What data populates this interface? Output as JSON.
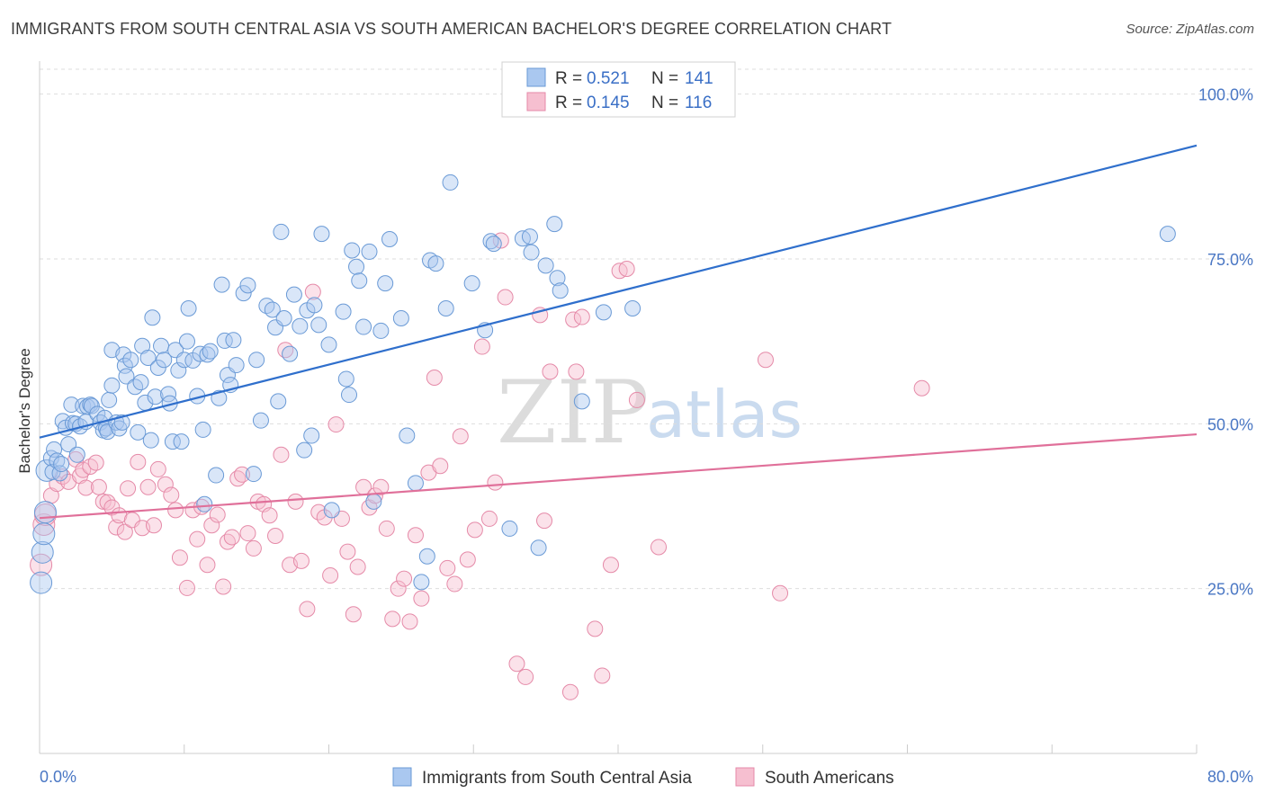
{
  "title": "IMMIGRANTS FROM SOUTH CENTRAL ASIA VS SOUTH AMERICAN BACHELOR'S DEGREE CORRELATION CHART",
  "source": "Source: ZipAtlas.com",
  "watermark": {
    "zip": "ZIP",
    "atlas": "atlas"
  },
  "colors": {
    "blue_fill": "#aac8f0",
    "blue_stroke": "#6a9ad6",
    "blue_line": "#2f6fcc",
    "pink_fill": "#f6bfd0",
    "pink_stroke": "#e58aa8",
    "pink_line": "#e0709a",
    "tick_label": "#4a77c4",
    "grid": "#dddddd"
  },
  "legend": {
    "rows": [
      {
        "r_label": "R = ",
        "r_value": "0.521",
        "n_label": "N = ",
        "n_value": "141"
      },
      {
        "r_label": "R = ",
        "r_value": "0.145",
        "n_label": "N = ",
        "n_value": "116"
      }
    ]
  },
  "chart_data": {
    "type": "scatter",
    "title": "IMMIGRANTS FROM SOUTH CENTRAL ASIA VS SOUTH AMERICAN BACHELOR'S DEGREE CORRELATION CHART",
    "xlabel": "",
    "ylabel": "Bachelor's Degree",
    "xlim": [
      0,
      80
    ],
    "ylim": [
      0,
      105
    ],
    "x_tick_labels": [
      "0.0%",
      "80.0%"
    ],
    "y_ticks": [
      25,
      50,
      75,
      100
    ],
    "y_tick_labels": [
      "25.0%",
      "50.0%",
      "75.0%",
      "100.0%"
    ],
    "grid": "horizontal dashed",
    "legend_position": "top-center",
    "series": [
      {
        "name": "Immigrants from South Central Asia",
        "color": "blue",
        "trend": {
          "x": [
            0,
            80
          ],
          "y": [
            47.9,
            92.2
          ]
        },
        "points": [
          [
            0.1,
            25.9
          ],
          [
            0.2,
            30.5
          ],
          [
            0.3,
            33.3
          ],
          [
            0.4,
            36.6
          ],
          [
            0.5,
            42.9
          ],
          [
            0.8,
            44.8
          ],
          [
            0.9,
            42.7
          ],
          [
            1.0,
            46.1
          ],
          [
            1.2,
            44.4
          ],
          [
            1.4,
            42.5
          ],
          [
            1.5,
            43.9
          ],
          [
            1.6,
            50.4
          ],
          [
            1.8,
            49.4
          ],
          [
            2.0,
            46.9
          ],
          [
            2.2,
            52.9
          ],
          [
            2.3,
            50.1
          ],
          [
            2.5,
            50.0
          ],
          [
            2.6,
            45.3
          ],
          [
            2.8,
            49.6
          ],
          [
            3.0,
            52.7
          ],
          [
            3.2,
            50.3
          ],
          [
            3.3,
            52.6
          ],
          [
            3.5,
            52.9
          ],
          [
            3.6,
            52.7
          ],
          [
            4.0,
            51.5
          ],
          [
            4.2,
            50.2
          ],
          [
            4.4,
            49.0
          ],
          [
            4.5,
            50.9
          ],
          [
            4.6,
            49.3
          ],
          [
            4.7,
            48.8
          ],
          [
            4.8,
            53.6
          ],
          [
            5.0,
            55.8
          ],
          [
            5.0,
            61.2
          ],
          [
            5.3,
            50.2
          ],
          [
            5.5,
            49.3
          ],
          [
            5.7,
            50.2
          ],
          [
            5.8,
            60.5
          ],
          [
            5.9,
            58.8
          ],
          [
            6.0,
            57.2
          ],
          [
            6.3,
            59.7
          ],
          [
            6.6,
            55.6
          ],
          [
            6.8,
            48.7
          ],
          [
            7.0,
            56.3
          ],
          [
            7.1,
            61.8
          ],
          [
            7.3,
            53.2
          ],
          [
            7.5,
            60.0
          ],
          [
            7.7,
            47.5
          ],
          [
            7.8,
            66.1
          ],
          [
            8.0,
            54.1
          ],
          [
            8.2,
            58.5
          ],
          [
            8.4,
            61.8
          ],
          [
            8.6,
            59.7
          ],
          [
            8.9,
            54.5
          ],
          [
            9.0,
            53.1
          ],
          [
            9.2,
            47.3
          ],
          [
            9.4,
            61.2
          ],
          [
            9.6,
            58.1
          ],
          [
            9.8,
            47.3
          ],
          [
            10.0,
            59.7
          ],
          [
            10.2,
            62.5
          ],
          [
            10.3,
            67.5
          ],
          [
            10.6,
            59.6
          ],
          [
            10.9,
            54.2
          ],
          [
            11.1,
            60.6
          ],
          [
            11.3,
            49.1
          ],
          [
            11.4,
            37.8
          ],
          [
            11.6,
            60.5
          ],
          [
            11.8,
            61.0
          ],
          [
            12.2,
            42.2
          ],
          [
            12.4,
            53.9
          ],
          [
            12.6,
            71.1
          ],
          [
            12.8,
            62.6
          ],
          [
            13.0,
            57.4
          ],
          [
            13.2,
            55.9
          ],
          [
            13.4,
            62.7
          ],
          [
            13.6,
            58.9
          ],
          [
            14.1,
            69.8
          ],
          [
            14.4,
            71.0
          ],
          [
            14.8,
            42.4
          ],
          [
            15.0,
            59.7
          ],
          [
            15.3,
            50.5
          ],
          [
            15.7,
            67.9
          ],
          [
            16.1,
            67.3
          ],
          [
            16.3,
            64.6
          ],
          [
            16.5,
            53.4
          ],
          [
            16.7,
            79.1
          ],
          [
            16.9,
            66.0
          ],
          [
            17.3,
            60.6
          ],
          [
            17.6,
            69.6
          ],
          [
            18.0,
            64.8
          ],
          [
            18.3,
            46.0
          ],
          [
            18.5,
            67.2
          ],
          [
            18.8,
            48.2
          ],
          [
            19.0,
            68.0
          ],
          [
            19.3,
            65.0
          ],
          [
            19.5,
            78.8
          ],
          [
            20.0,
            62.0
          ],
          [
            20.2,
            36.9
          ],
          [
            21.0,
            67.0
          ],
          [
            21.2,
            56.8
          ],
          [
            21.4,
            54.4
          ],
          [
            21.6,
            76.3
          ],
          [
            21.9,
            73.8
          ],
          [
            22.1,
            71.7
          ],
          [
            22.4,
            64.7
          ],
          [
            22.8,
            76.1
          ],
          [
            23.1,
            38.2
          ],
          [
            23.6,
            64.1
          ],
          [
            23.9,
            71.3
          ],
          [
            24.2,
            78.0
          ],
          [
            25.0,
            66.0
          ],
          [
            25.4,
            48.2
          ],
          [
            26.0,
            41.0
          ],
          [
            26.4,
            26.0
          ],
          [
            26.8,
            29.9
          ],
          [
            27.0,
            74.8
          ],
          [
            27.4,
            74.3
          ],
          [
            28.1,
            67.5
          ],
          [
            28.4,
            86.6
          ],
          [
            29.9,
            71.3
          ],
          [
            30.8,
            64.2
          ],
          [
            31.2,
            77.7
          ],
          [
            31.4,
            77.3
          ],
          [
            32.5,
            34.1
          ],
          [
            33.4,
            78.1
          ],
          [
            33.9,
            78.4
          ],
          [
            34.0,
            76.0
          ],
          [
            34.5,
            31.2
          ],
          [
            35.0,
            74.0
          ],
          [
            35.6,
            80.3
          ],
          [
            35.8,
            72.1
          ],
          [
            36.0,
            70.2
          ],
          [
            37.5,
            53.4
          ],
          [
            39.0,
            66.9
          ],
          [
            41.0,
            67.5
          ],
          [
            78.0,
            78.8
          ]
        ]
      },
      {
        "name": "South Americans",
        "color": "pink",
        "trend": {
          "x": [
            0,
            80
          ],
          "y": [
            35.7,
            48.4
          ]
        },
        "points": [
          [
            0.1,
            28.6
          ],
          [
            0.3,
            34.7
          ],
          [
            0.4,
            36.2
          ],
          [
            0.8,
            39.1
          ],
          [
            1.2,
            40.9
          ],
          [
            1.6,
            42.0
          ],
          [
            2.0,
            41.2
          ],
          [
            2.5,
            44.6
          ],
          [
            2.8,
            42.1
          ],
          [
            3.0,
            43.0
          ],
          [
            3.2,
            40.3
          ],
          [
            3.5,
            43.5
          ],
          [
            3.9,
            44.1
          ],
          [
            4.1,
            40.4
          ],
          [
            4.4,
            38.2
          ],
          [
            4.7,
            38.1
          ],
          [
            5.0,
            37.3
          ],
          [
            5.3,
            34.3
          ],
          [
            5.5,
            36.1
          ],
          [
            5.9,
            33.6
          ],
          [
            6.1,
            40.2
          ],
          [
            6.4,
            35.4
          ],
          [
            6.8,
            44.2
          ],
          [
            7.1,
            34.2
          ],
          [
            7.5,
            40.4
          ],
          [
            7.9,
            34.6
          ],
          [
            8.2,
            43.1
          ],
          [
            8.7,
            40.8
          ],
          [
            9.1,
            39.2
          ],
          [
            9.4,
            36.9
          ],
          [
            9.7,
            29.7
          ],
          [
            10.2,
            25.1
          ],
          [
            10.6,
            36.9
          ],
          [
            10.9,
            32.5
          ],
          [
            11.2,
            37.4
          ],
          [
            11.6,
            28.6
          ],
          [
            11.9,
            34.6
          ],
          [
            12.3,
            36.2
          ],
          [
            12.7,
            25.3
          ],
          [
            13.0,
            32.1
          ],
          [
            13.3,
            32.8
          ],
          [
            13.7,
            41.7
          ],
          [
            14.0,
            42.3
          ],
          [
            14.4,
            33.4
          ],
          [
            14.8,
            31.1
          ],
          [
            15.1,
            38.2
          ],
          [
            15.5,
            37.8
          ],
          [
            15.9,
            36.1
          ],
          [
            16.3,
            33.0
          ],
          [
            16.7,
            45.3
          ],
          [
            17.0,
            61.2
          ],
          [
            17.3,
            28.6
          ],
          [
            17.7,
            38.2
          ],
          [
            18.1,
            29.2
          ],
          [
            18.5,
            21.9
          ],
          [
            18.9,
            70.0
          ],
          [
            19.3,
            36.6
          ],
          [
            19.7,
            35.8
          ],
          [
            20.1,
            27.0
          ],
          [
            20.5,
            49.9
          ],
          [
            20.9,
            35.6
          ],
          [
            21.3,
            30.6
          ],
          [
            21.7,
            21.1
          ],
          [
            22.0,
            28.3
          ],
          [
            22.4,
            40.4
          ],
          [
            22.8,
            37.3
          ],
          [
            23.2,
            39.1
          ],
          [
            23.6,
            40.4
          ],
          [
            24.0,
            34.1
          ],
          [
            24.4,
            20.4
          ],
          [
            24.8,
            25.0
          ],
          [
            25.2,
            26.5
          ],
          [
            25.6,
            20.0
          ],
          [
            26.0,
            33.1
          ],
          [
            26.4,
            23.5
          ],
          [
            26.9,
            42.6
          ],
          [
            27.3,
            57.0
          ],
          [
            27.7,
            43.6
          ],
          [
            28.2,
            28.1
          ],
          [
            28.7,
            25.7
          ],
          [
            29.1,
            48.1
          ],
          [
            29.6,
            29.4
          ],
          [
            30.1,
            33.9
          ],
          [
            30.6,
            61.7
          ],
          [
            31.1,
            35.6
          ],
          [
            31.5,
            41.1
          ],
          [
            31.9,
            77.8
          ],
          [
            32.2,
            69.2
          ],
          [
            33.0,
            13.6
          ],
          [
            33.6,
            11.6
          ],
          [
            34.6,
            66.5
          ],
          [
            34.9,
            35.3
          ],
          [
            35.3,
            57.9
          ],
          [
            36.7,
            9.3
          ],
          [
            36.9,
            65.8
          ],
          [
            37.1,
            57.9
          ],
          [
            37.5,
            66.2
          ],
          [
            38.4,
            18.9
          ],
          [
            38.9,
            11.8
          ],
          [
            39.5,
            28.6
          ],
          [
            40.1,
            73.2
          ],
          [
            40.6,
            73.5
          ],
          [
            41.3,
            53.6
          ],
          [
            42.8,
            31.3
          ],
          [
            50.2,
            59.7
          ],
          [
            51.2,
            24.3
          ],
          [
            61.0,
            55.4
          ]
        ]
      }
    ]
  },
  "bottom_legend": {
    "items": [
      {
        "label": "Immigrants from South Central Asia"
      },
      {
        "label": "South Americans"
      }
    ]
  }
}
